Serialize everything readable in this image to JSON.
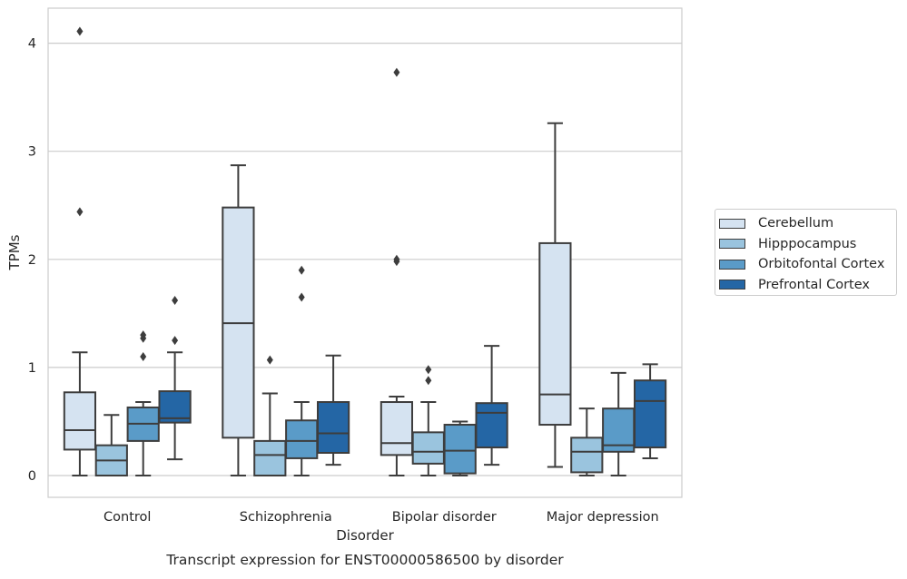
{
  "chart_data": {
    "type": "box",
    "title": "Transcript expression for ENST00000586500 by disorder",
    "xlabel": "Disorder",
    "ylabel": "TPMs",
    "ylim": [
      -0.2,
      4.32
    ],
    "yticks": [
      "0",
      "1",
      "2",
      "3",
      "4"
    ],
    "grid": "horizontal",
    "legend_position": "right",
    "categories": [
      "Control",
      "Schizophrenia",
      "Bipolar disorder",
      "Major depression"
    ],
    "series": [
      {
        "name": "Cerebellum",
        "color": "#d5e3f1",
        "boxes": [
          {
            "whisker_low": 0.0,
            "q1": 0.24,
            "median": 0.42,
            "q3": 0.77,
            "whisker_high": 1.14,
            "outliers": [
              2.44,
              4.11
            ]
          },
          {
            "whisker_low": 0.0,
            "q1": 0.35,
            "median": 1.41,
            "q3": 2.48,
            "whisker_high": 2.87,
            "outliers": []
          },
          {
            "whisker_low": 0.0,
            "q1": 0.19,
            "median": 0.3,
            "q3": 0.68,
            "whisker_high": 0.73,
            "outliers": [
              1.98,
              2.0,
              3.73
            ]
          },
          {
            "whisker_low": 0.08,
            "q1": 0.47,
            "median": 0.75,
            "q3": 2.15,
            "whisker_high": 3.26,
            "outliers": []
          }
        ]
      },
      {
        "name": "Hipppocampus",
        "color": "#9ac4de",
        "boxes": [
          {
            "whisker_low": 0.0,
            "q1": 0.0,
            "median": 0.14,
            "q3": 0.28,
            "whisker_high": 0.56,
            "outliers": []
          },
          {
            "whisker_low": 0.0,
            "q1": 0.0,
            "median": 0.19,
            "q3": 0.32,
            "whisker_high": 0.76,
            "outliers": [
              1.07
            ]
          },
          {
            "whisker_low": 0.0,
            "q1": 0.11,
            "median": 0.22,
            "q3": 0.4,
            "whisker_high": 0.68,
            "outliers": [
              0.88,
              0.98
            ]
          },
          {
            "whisker_low": 0.0,
            "q1": 0.03,
            "median": 0.22,
            "q3": 0.35,
            "whisker_high": 0.62,
            "outliers": []
          }
        ]
      },
      {
        "name": "Orbitofontal Cortex",
        "color": "#5a9bc8",
        "boxes": [
          {
            "whisker_low": 0.0,
            "q1": 0.32,
            "median": 0.48,
            "q3": 0.63,
            "whisker_high": 0.68,
            "outliers": [
              1.1,
              1.27,
              1.3
            ]
          },
          {
            "whisker_low": 0.0,
            "q1": 0.16,
            "median": 0.32,
            "q3": 0.51,
            "whisker_high": 0.68,
            "outliers": [
              1.65,
              1.9
            ]
          },
          {
            "whisker_low": 0.0,
            "q1": 0.02,
            "median": 0.23,
            "q3": 0.47,
            "whisker_high": 0.5,
            "outliers": []
          },
          {
            "whisker_low": 0.0,
            "q1": 0.22,
            "median": 0.28,
            "q3": 0.62,
            "whisker_high": 0.95,
            "outliers": []
          }
        ]
      },
      {
        "name": "Prefrontal Cortex",
        "color": "#2466a5",
        "boxes": [
          {
            "whisker_low": 0.15,
            "q1": 0.49,
            "median": 0.53,
            "q3": 0.78,
            "whisker_high": 1.14,
            "outliers": [
              1.25,
              1.62
            ]
          },
          {
            "whisker_low": 0.1,
            "q1": 0.21,
            "median": 0.39,
            "q3": 0.68,
            "whisker_high": 1.11,
            "outliers": []
          },
          {
            "whisker_low": 0.1,
            "q1": 0.26,
            "median": 0.58,
            "q3": 0.67,
            "whisker_high": 1.2,
            "outliers": []
          },
          {
            "whisker_low": 0.16,
            "q1": 0.26,
            "median": 0.69,
            "q3": 0.88,
            "whisker_high": 1.03,
            "outliers": []
          }
        ]
      }
    ]
  }
}
